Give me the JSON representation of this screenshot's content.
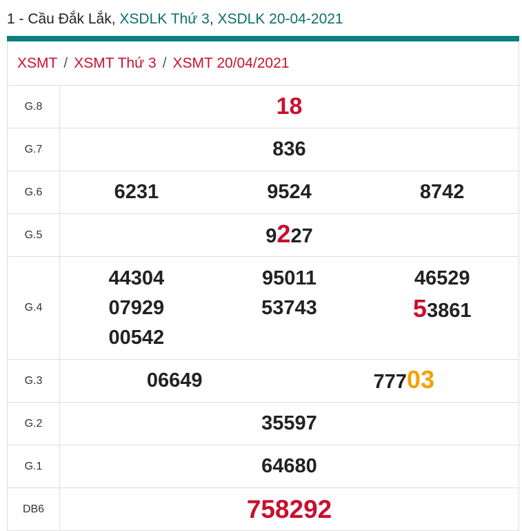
{
  "title": {
    "prefix": "1 - Cầu Đắk Lắk, ",
    "link1": "XSDLK Thứ 3",
    ", ": ", ",
    "link2": "XSDLK 20-04-2021"
  },
  "breadcrumb": [
    "XSMT",
    "XSMT Thứ 3",
    "XSMT 20/04/2021"
  ],
  "breadcrumb_sep": "/",
  "colors": {
    "accent": "#0b7f7f",
    "red": "#c8102e",
    "orange": "#f5a000"
  },
  "prizes": {
    "g8": {
      "label": "G.8",
      "values": [
        "18"
      ]
    },
    "g7": {
      "label": "G.7",
      "values": [
        "836"
      ]
    },
    "g6": {
      "label": "G.6",
      "values": [
        "6231",
        "9524",
        "8742"
      ]
    },
    "g5": {
      "label": "G.5",
      "parts": [
        "9",
        "2",
        "27"
      ]
    },
    "g4": {
      "label": "G.4",
      "col1": [
        "44304",
        "07929",
        "00542"
      ],
      "col2": [
        "95011",
        "53743"
      ],
      "col3": [
        "46529"
      ],
      "col3_hl": [
        "5",
        "3861"
      ]
    },
    "g3": {
      "label": "G.3",
      "values": [
        "06649"
      ],
      "parts": [
        "777",
        "03"
      ]
    },
    "g2": {
      "label": "G.2",
      "values": [
        "35597"
      ]
    },
    "g1": {
      "label": "G.1",
      "values": [
        "64680"
      ]
    },
    "db": {
      "label": "DB6",
      "values": [
        "758292"
      ]
    }
  }
}
